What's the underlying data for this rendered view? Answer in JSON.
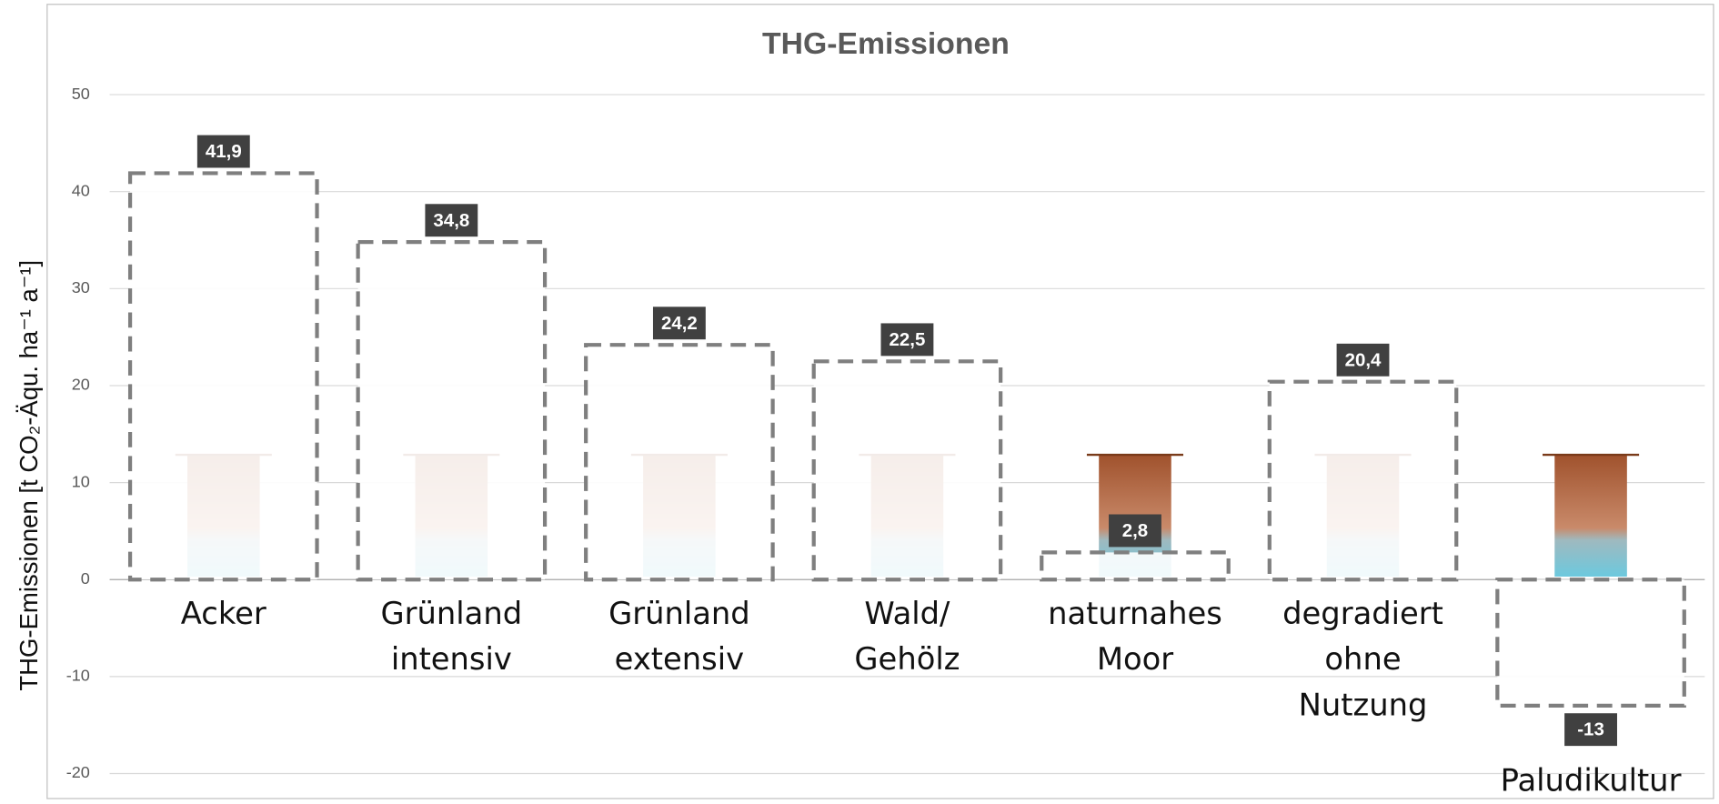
{
  "chart_data": {
    "type": "bar",
    "title": "THG-Emissionen",
    "y_label": "THG-Emissionen [t CO₂-Äqu. ha⁻¹ a⁻¹]",
    "categories": [
      "Acker",
      "Grünland intensiv",
      "Grünland extensiv",
      "Wald/ Gehölz",
      "naturnahes Moor",
      "degradiert ohne Nutzung",
      "Paludikultur"
    ],
    "values": [
      41.9,
      34.8,
      24.2,
      22.5,
      2.8,
      20.4,
      -13
    ],
    "value_labels": [
      "41,9",
      "34,8",
      "24,2",
      "22,5",
      "2,8",
      "20,4",
      "-13"
    ],
    "color": "#7f7f7f",
    "ylim": [
      -20,
      50
    ],
    "yticks": [
      -20,
      -10,
      0,
      10,
      20,
      30,
      40,
      50
    ],
    "grid": true
  }
}
